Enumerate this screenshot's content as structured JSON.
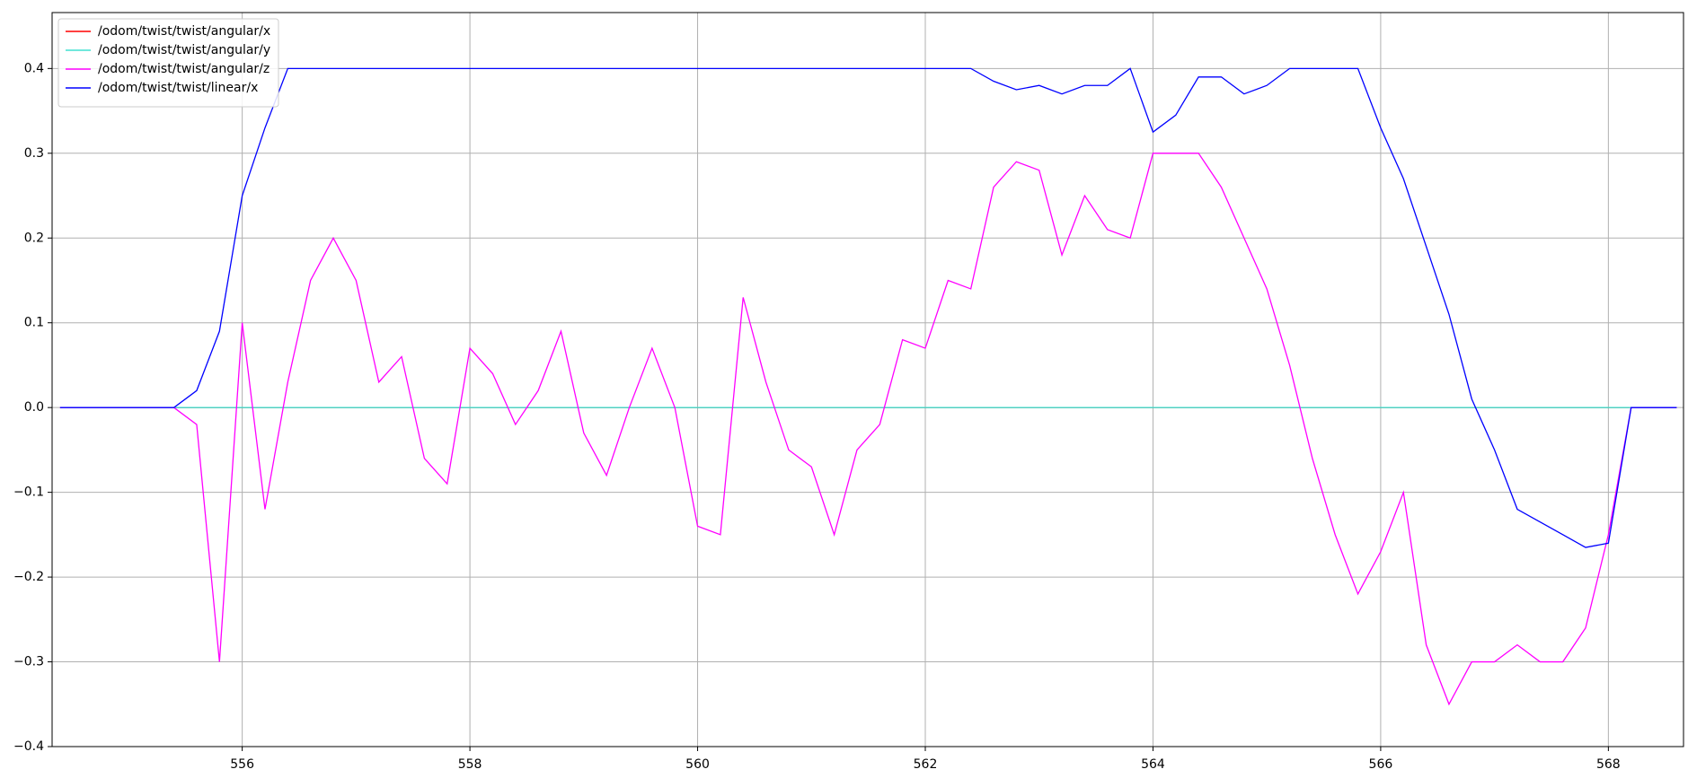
{
  "chart_data": {
    "type": "line",
    "x": [
      554.4,
      554.6,
      554.8,
      555.0,
      555.2,
      555.4,
      555.6,
      555.8,
      556.0,
      556.2,
      556.4,
      556.6,
      556.8,
      557.0,
      557.2,
      557.4,
      557.6,
      557.8,
      558.0,
      558.2,
      558.4,
      558.6,
      558.8,
      559.0,
      559.2,
      559.4,
      559.6,
      559.8,
      560.0,
      560.2,
      560.4,
      560.6,
      560.8,
      561.0,
      561.2,
      561.4,
      561.6,
      561.8,
      562.0,
      562.2,
      562.4,
      562.6,
      562.8,
      563.0,
      563.2,
      563.4,
      563.6,
      563.8,
      564.0,
      564.2,
      564.4,
      564.6,
      564.8,
      565.0,
      565.2,
      565.4,
      565.6,
      565.8,
      566.0,
      566.2,
      566.4,
      566.6,
      566.8,
      567.0,
      567.2,
      567.4,
      567.6,
      567.8,
      568.0,
      568.2,
      568.4,
      568.6
    ],
    "series": [
      {
        "name": "/odom/twist/twist/angular/x",
        "color": "#ff0000",
        "values": [
          0,
          0,
          0,
          0,
          0,
          0,
          0,
          0,
          0,
          0,
          0,
          0,
          0,
          0,
          0,
          0,
          0,
          0,
          0,
          0,
          0,
          0,
          0,
          0,
          0,
          0,
          0,
          0,
          0,
          0,
          0,
          0,
          0,
          0,
          0,
          0,
          0,
          0,
          0,
          0,
          0,
          0,
          0,
          0,
          0,
          0,
          0,
          0,
          0,
          0,
          0,
          0,
          0,
          0,
          0,
          0,
          0,
          0,
          0,
          0,
          0,
          0,
          0,
          0,
          0,
          0,
          0,
          0,
          0,
          0,
          0,
          0
        ]
      },
      {
        "name": "/odom/twist/twist/angular/y",
        "color": "#40e0d0",
        "values": [
          0,
          0,
          0,
          0,
          0,
          0,
          0,
          0,
          0,
          0,
          0,
          0,
          0,
          0,
          0,
          0,
          0,
          0,
          0,
          0,
          0,
          0,
          0,
          0,
          0,
          0,
          0,
          0,
          0,
          0,
          0,
          0,
          0,
          0,
          0,
          0,
          0,
          0,
          0,
          0,
          0,
          0,
          0,
          0,
          0,
          0,
          0,
          0,
          0,
          0,
          0,
          0,
          0,
          0,
          0,
          0,
          0,
          0,
          0,
          0,
          0,
          0,
          0,
          0,
          0,
          0,
          0,
          0,
          0,
          0,
          0,
          0
        ]
      },
      {
        "name": "/odom/twist/twist/angular/z",
        "color": "#ff00ff",
        "values": [
          0,
          0,
          0,
          0,
          0,
          0,
          -0.02,
          -0.3,
          0.1,
          -0.12,
          0.03,
          0.15,
          0.2,
          0.15,
          0.03,
          0.06,
          -0.06,
          -0.09,
          0.07,
          0.04,
          -0.02,
          0.02,
          0.09,
          -0.03,
          -0.08,
          0.0,
          0.07,
          0.0,
          -0.14,
          -0.15,
          0.13,
          0.03,
          -0.05,
          -0.07,
          -0.15,
          -0.05,
          -0.02,
          0.08,
          0.07,
          0.15,
          0.14,
          0.26,
          0.29,
          0.28,
          0.18,
          0.25,
          0.21,
          0.2,
          0.3,
          0.3,
          0.3,
          0.26,
          0.2,
          0.14,
          0.05,
          -0.06,
          -0.15,
          -0.22,
          -0.17,
          -0.1,
          -0.28,
          -0.35,
          -0.3,
          -0.3,
          -0.28,
          -0.3,
          -0.3,
          -0.26,
          -0.15,
          0,
          0,
          0
        ]
      },
      {
        "name": "/odom/twist/twist/linear/x",
        "color": "#0000ff",
        "values": [
          0,
          0,
          0,
          0,
          0,
          0,
          0.02,
          0.09,
          0.25,
          0.33,
          0.4,
          0.4,
          0.4,
          0.4,
          0.4,
          0.4,
          0.4,
          0.4,
          0.4,
          0.4,
          0.4,
          0.4,
          0.4,
          0.4,
          0.4,
          0.4,
          0.4,
          0.4,
          0.4,
          0.4,
          0.4,
          0.4,
          0.4,
          0.4,
          0.4,
          0.4,
          0.4,
          0.4,
          0.4,
          0.4,
          0.4,
          0.385,
          0.375,
          0.38,
          0.37,
          0.38,
          0.38,
          0.4,
          0.325,
          0.345,
          0.39,
          0.39,
          0.37,
          0.38,
          0.4,
          0.4,
          0.4,
          0.4,
          0.33,
          0.27,
          0.19,
          0.11,
          0.01,
          -0.05,
          -0.12,
          -0.135,
          -0.15,
          -0.165,
          -0.16,
          0,
          0,
          0
        ]
      }
    ],
    "xlim": [
      554.33,
      568.66
    ],
    "xticks": [
      556,
      558,
      560,
      562,
      564,
      566,
      568
    ],
    "ylim": [
      -0.4,
      0.466
    ],
    "yticks": [
      {
        "value": -0.4,
        "label": "−0.4"
      },
      {
        "value": -0.3,
        "label": "−0.3"
      },
      {
        "value": -0.2,
        "label": "−0.2"
      },
      {
        "value": -0.1,
        "label": "−0.1"
      },
      {
        "value": 0,
        "label": "0.0"
      },
      0.1,
      0.2,
      0.3,
      0.4
    ],
    "grid": true,
    "legend": "upper-left"
  }
}
